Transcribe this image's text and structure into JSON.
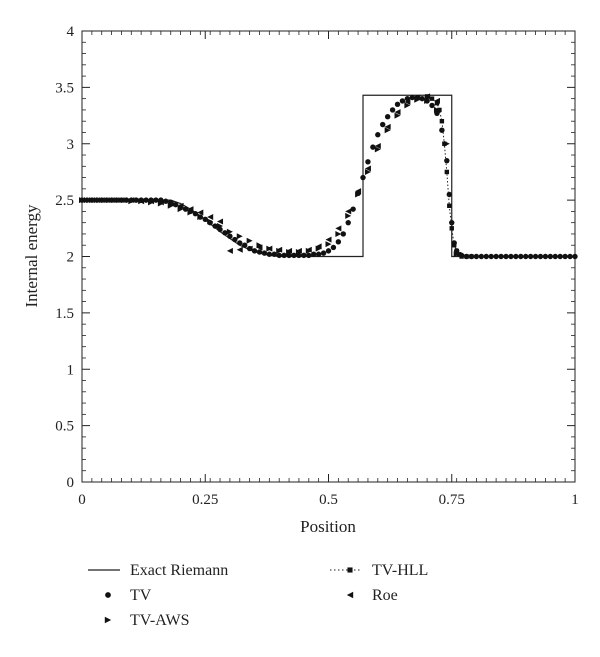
{
  "chart_data": {
    "type": "line",
    "xlabel": "Position",
    "ylabel": "Internal energy",
    "xlim": [
      0,
      1
    ],
    "ylim": [
      0,
      4
    ],
    "x_ticks": [
      "0",
      "0.25",
      "0.5",
      "0.75",
      "1"
    ],
    "y_ticks": [
      "0",
      "0.5",
      "1",
      "1.5",
      "2",
      "2.5",
      "3",
      "3.5",
      "4"
    ],
    "grid": false,
    "legend_position": "bottom",
    "series": [
      {
        "name": "Exact Riemann",
        "marker": "line",
        "x": [
          0,
          0.18,
          0.2,
          0.22,
          0.24,
          0.26,
          0.28,
          0.3,
          0.32,
          0.34,
          0.36,
          0.38,
          0.4,
          0.42,
          0.45,
          0.48,
          0.5,
          0.53,
          0.57,
          0.57,
          0.75,
          0.75,
          1.0
        ],
        "y": [
          2.5,
          2.5,
          2.47,
          2.42,
          2.36,
          2.29,
          2.22,
          2.16,
          2.1,
          2.06,
          2.03,
          2.01,
          2.0,
          2.0,
          2.0,
          2.0,
          2.0,
          2.0,
          2.0,
          3.43,
          3.43,
          2.0,
          2.0
        ]
      },
      {
        "name": "TV",
        "marker": "circle",
        "x": [
          0.0,
          0.01,
          0.02,
          0.03,
          0.04,
          0.05,
          0.06,
          0.07,
          0.08,
          0.09,
          0.1,
          0.11,
          0.12,
          0.13,
          0.14,
          0.15,
          0.16,
          0.17,
          0.18,
          0.19,
          0.2,
          0.21,
          0.22,
          0.23,
          0.24,
          0.25,
          0.26,
          0.27,
          0.28,
          0.29,
          0.3,
          0.31,
          0.32,
          0.33,
          0.34,
          0.35,
          0.36,
          0.37,
          0.38,
          0.39,
          0.4,
          0.41,
          0.42,
          0.43,
          0.44,
          0.45,
          0.46,
          0.47,
          0.48,
          0.49,
          0.5,
          0.51,
          0.52,
          0.53,
          0.54,
          0.55,
          0.56,
          0.57,
          0.58,
          0.59,
          0.6,
          0.61,
          0.62,
          0.63,
          0.64,
          0.65,
          0.66,
          0.67,
          0.68,
          0.69,
          0.7,
          0.71,
          0.72,
          0.73,
          0.74,
          0.745,
          0.75,
          0.755,
          0.76,
          0.77,
          0.78,
          0.79,
          0.8,
          0.81,
          0.82,
          0.83,
          0.84,
          0.85,
          0.86,
          0.87,
          0.88,
          0.89,
          0.9,
          0.91,
          0.92,
          0.93,
          0.94,
          0.95,
          0.96,
          0.97,
          0.98,
          0.99,
          1.0
        ],
        "y": [
          2.5,
          2.5,
          2.5,
          2.5,
          2.5,
          2.5,
          2.5,
          2.5,
          2.5,
          2.5,
          2.5,
          2.5,
          2.5,
          2.5,
          2.5,
          2.5,
          2.5,
          2.49,
          2.48,
          2.46,
          2.44,
          2.42,
          2.4,
          2.38,
          2.35,
          2.33,
          2.3,
          2.27,
          2.24,
          2.21,
          2.18,
          2.15,
          2.12,
          2.1,
          2.07,
          2.05,
          2.04,
          2.03,
          2.02,
          2.02,
          2.01,
          2.01,
          2.01,
          2.01,
          2.01,
          2.01,
          2.01,
          2.02,
          2.02,
          2.03,
          2.05,
          2.08,
          2.13,
          2.2,
          2.3,
          2.42,
          2.56,
          2.7,
          2.84,
          2.97,
          3.08,
          3.17,
          3.24,
          3.3,
          3.35,
          3.38,
          3.4,
          3.41,
          3.41,
          3.4,
          3.38,
          3.34,
          3.27,
          3.12,
          2.85,
          2.55,
          2.3,
          2.12,
          2.05,
          2.01,
          2.0,
          2.0,
          2.0,
          2.0,
          2.0,
          2.0,
          2.0,
          2.0,
          2.0,
          2.0,
          2.0,
          2.0,
          2.0,
          2.0,
          2.0,
          2.0,
          2.0,
          2.0,
          2.0,
          2.0,
          2.0,
          2.0,
          2.0
        ]
      },
      {
        "name": "TV-AWS",
        "marker": "triangle-right",
        "x": [
          0.0,
          0.02,
          0.04,
          0.06,
          0.08,
          0.1,
          0.12,
          0.14,
          0.16,
          0.18,
          0.2,
          0.22,
          0.24,
          0.26,
          0.28,
          0.3,
          0.32,
          0.34,
          0.36,
          0.38,
          0.4,
          0.42,
          0.44,
          0.46,
          0.48,
          0.5,
          0.52,
          0.54,
          0.56,
          0.58,
          0.6,
          0.62,
          0.64,
          0.66,
          0.68,
          0.7,
          0.72,
          0.74,
          0.76
        ],
        "y": [
          2.5,
          2.5,
          2.5,
          2.5,
          2.5,
          2.49,
          2.49,
          2.48,
          2.47,
          2.45,
          2.42,
          2.39,
          2.35,
          2.31,
          2.27,
          2.22,
          2.18,
          2.14,
          2.1,
          2.07,
          2.05,
          2.04,
          2.04,
          2.05,
          2.07,
          2.11,
          2.2,
          2.36,
          2.55,
          2.75,
          2.95,
          3.12,
          3.25,
          3.34,
          3.39,
          3.38,
          3.3,
          3.0,
          2.02
        ]
      },
      {
        "name": "TV-HLL",
        "marker": "square",
        "x": [
          0.7,
          0.71,
          0.72,
          0.725,
          0.73,
          0.735,
          0.74,
          0.745,
          0.75,
          0.755,
          0.76,
          0.765,
          0.77,
          0.78,
          0.79
        ],
        "y": [
          3.42,
          3.4,
          3.36,
          3.3,
          3.2,
          3.0,
          2.75,
          2.45,
          2.25,
          2.1,
          2.05,
          2.02,
          2.0,
          2.0,
          2.0
        ]
      },
      {
        "name": "Roe",
        "marker": "triangle-left",
        "x": [
          0.0,
          0.02,
          0.04,
          0.06,
          0.08,
          0.1,
          0.12,
          0.14,
          0.16,
          0.18,
          0.2,
          0.22,
          0.24,
          0.26,
          0.28,
          0.3,
          0.32,
          0.34,
          0.36,
          0.38,
          0.4,
          0.42,
          0.44,
          0.46,
          0.48,
          0.5,
          0.52,
          0.54,
          0.56,
          0.58,
          0.6,
          0.62,
          0.64,
          0.66,
          0.68,
          0.7,
          0.72
        ],
        "y": [
          2.5,
          2.5,
          2.5,
          2.5,
          2.5,
          2.5,
          2.49,
          2.49,
          2.48,
          2.47,
          2.45,
          2.42,
          2.39,
          2.35,
          2.31,
          2.05,
          2.06,
          2.07,
          2.08,
          2.07,
          2.06,
          2.05,
          2.05,
          2.06,
          2.09,
          2.15,
          2.25,
          2.4,
          2.58,
          2.78,
          2.98,
          3.15,
          3.28,
          3.37,
          3.41,
          3.42,
          3.38
        ]
      }
    ]
  }
}
